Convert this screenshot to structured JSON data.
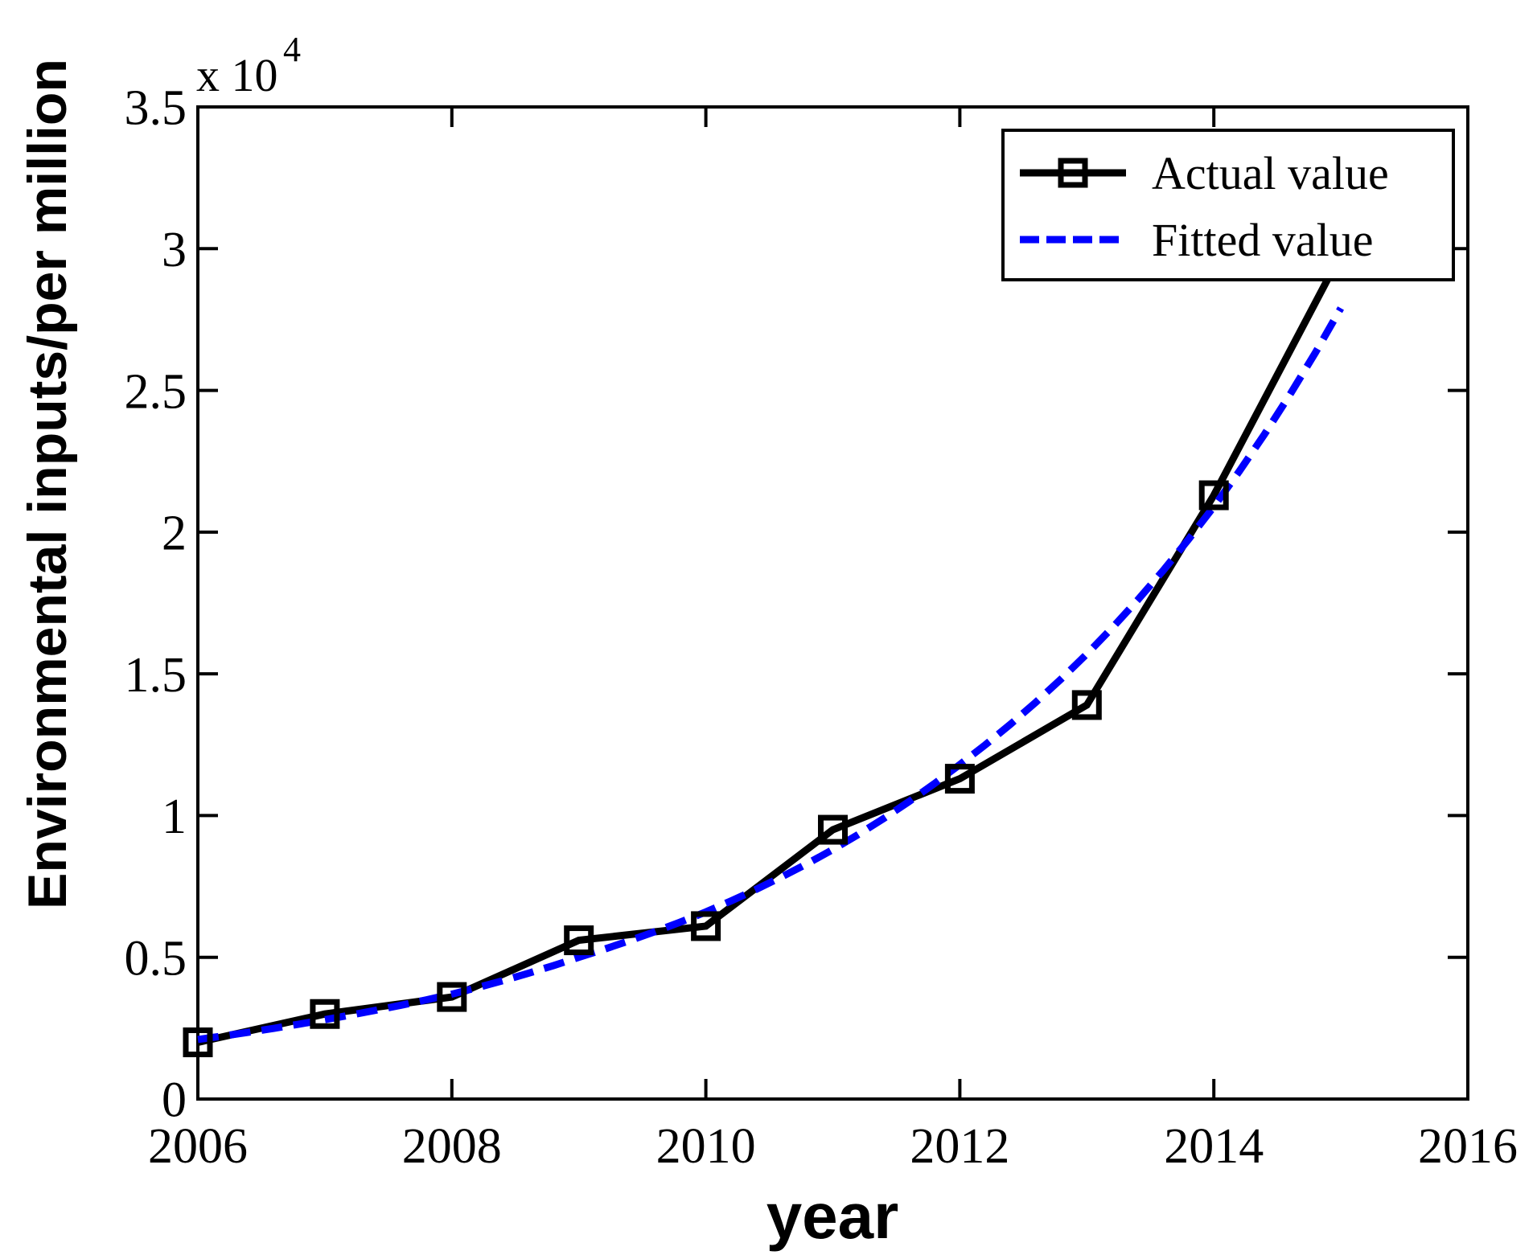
{
  "figure": {
    "exponent_label": "x 10",
    "exponent_power": "4",
    "xlabel": "year",
    "ylabel": "Environmental inputs/per million",
    "colors": {
      "actual": "#000000",
      "fitted": "#0000ff",
      "axis": "#000000",
      "background": "#ffffff"
    }
  },
  "legend": {
    "entries": [
      {
        "label": "Actual value"
      },
      {
        "label": "Fitted value"
      }
    ]
  },
  "chart_data": {
    "type": "line",
    "title": "",
    "xlabel": "year",
    "ylabel": "Environmental inputs/per million",
    "y_unit_note": "y values are in units of 10^4 (axis multiplier 'x 10^4')",
    "xlim": [
      2006,
      2016
    ],
    "ylim": [
      0,
      3.5
    ],
    "x_ticks": [
      2006,
      2008,
      2010,
      2012,
      2014,
      2016
    ],
    "y_ticks": [
      0,
      0.5,
      1,
      1.5,
      2,
      2.5,
      3,
      3.5
    ],
    "grid": false,
    "legend_position": "upper right",
    "x": [
      2006,
      2007,
      2008,
      2009,
      2010,
      2011,
      2012,
      2013,
      2014,
      2015
    ],
    "series": [
      {
        "name": "Actual value",
        "style": "solid",
        "marker": "square",
        "color": "#000000",
        "values": [
          0.2,
          0.3,
          0.36,
          0.56,
          0.61,
          0.95,
          1.13,
          1.39,
          2.13,
          2.98
        ]
      },
      {
        "name": "Fitted value",
        "style": "dashed",
        "marker": "none",
        "color": "#0000ff",
        "values": [
          0.21,
          0.28,
          0.37,
          0.5,
          0.66,
          0.88,
          1.18,
          1.57,
          2.09,
          2.79
        ]
      }
    ]
  }
}
